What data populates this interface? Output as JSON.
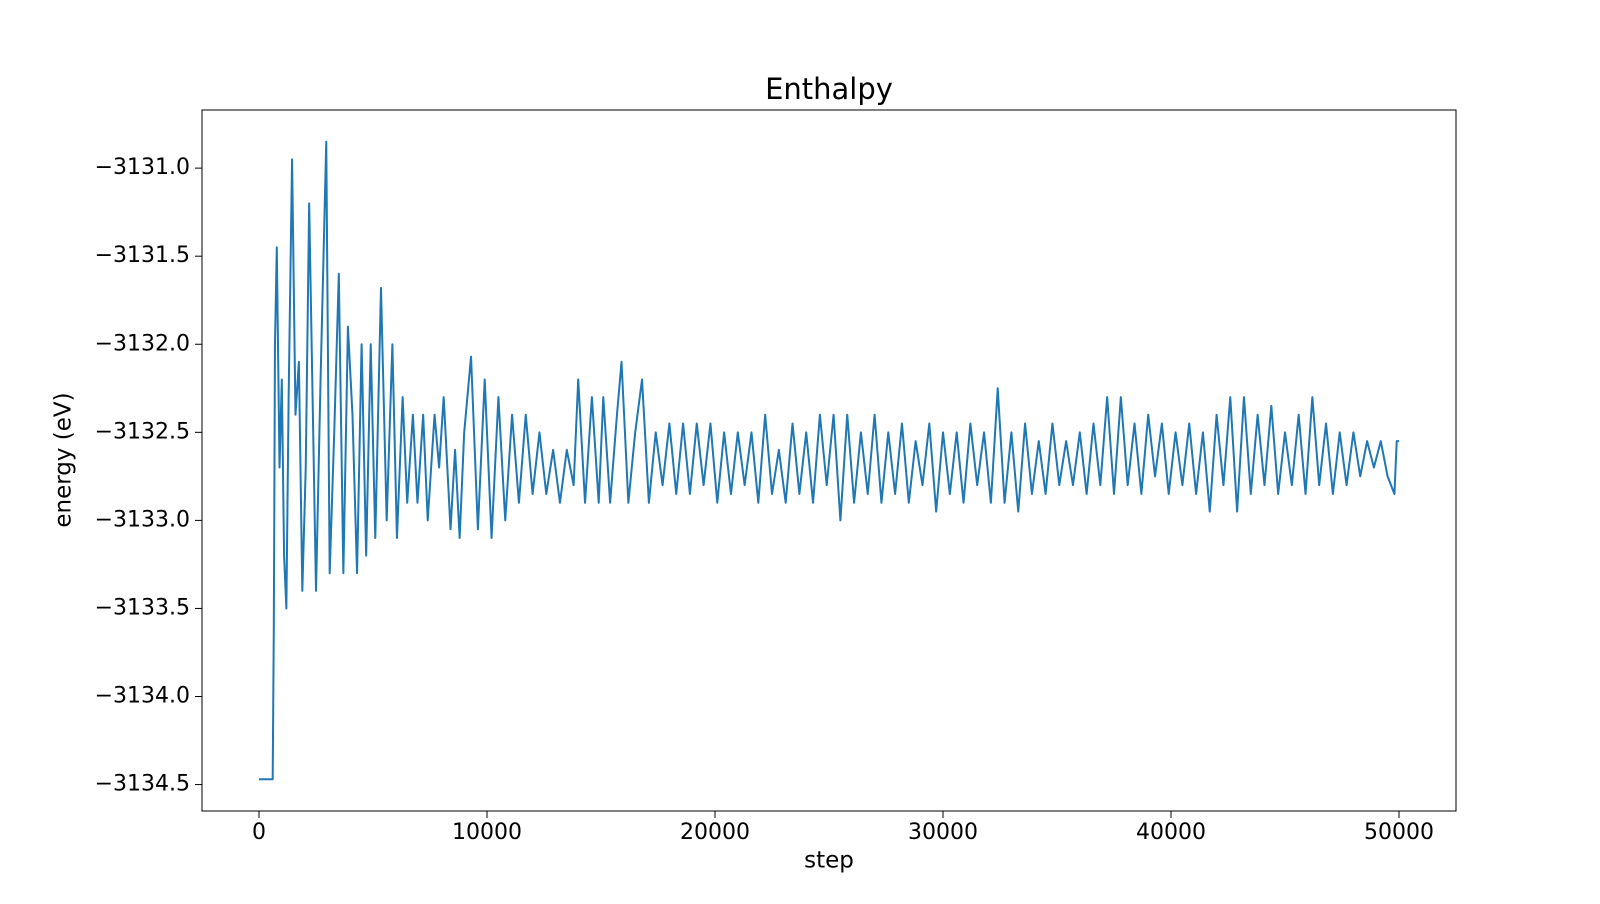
{
  "chart_data": {
    "type": "line",
    "title": "Enthalpy",
    "x_label": "step",
    "y_label": "energy (eV)",
    "xlim": [
      -2500,
      52500
    ],
    "ylim": [
      -3134.65,
      -3130.67
    ],
    "xticks": [
      0,
      10000,
      20000,
      30000,
      40000,
      50000
    ],
    "yticks": [
      {
        "value": -3131.0,
        "label": "−3131.0"
      },
      {
        "value": -3131.5,
        "label": "−3131.5"
      },
      {
        "value": -3132.0,
        "label": "−3132.0"
      },
      {
        "value": -3132.5,
        "label": "−3132.5"
      },
      {
        "value": -3133.0,
        "label": "−3133.0"
      },
      {
        "value": -3133.5,
        "label": "−3133.5"
      },
      {
        "value": -3134.0,
        "label": "−3134.0"
      },
      {
        "value": -3134.5,
        "label": "−3134.5"
      }
    ],
    "grid": false,
    "x": [
      0,
      600,
      650,
      700,
      780,
      900,
      1000,
      1100,
      1200,
      1300,
      1450,
      1600,
      1750,
      1900,
      2050,
      2200,
      2350,
      2500,
      2700,
      2950,
      3100,
      3300,
      3500,
      3700,
      3900,
      4100,
      4300,
      4500,
      4700,
      4900,
      5100,
      5350,
      5600,
      5850,
      6050,
      6300,
      6500,
      6750,
      6950,
      7200,
      7400,
      7700,
      7900,
      8100,
      8400,
      8600,
      8800,
      9000,
      9300,
      9600,
      9900,
      10200,
      10500,
      10800,
      11100,
      11400,
      11700,
      12000,
      12300,
      12600,
      12900,
      13200,
      13500,
      13800,
      14000,
      14300,
      14600,
      14900,
      15100,
      15400,
      15700,
      15900,
      16200,
      16500,
      16800,
      17100,
      17400,
      17700,
      18000,
      18300,
      18600,
      18900,
      19200,
      19500,
      19800,
      20100,
      20400,
      20700,
      21000,
      21300,
      21600,
      21900,
      22200,
      22500,
      22800,
      23100,
      23400,
      23700,
      24000,
      24300,
      24600,
      24900,
      25200,
      25500,
      25800,
      26100,
      26400,
      26700,
      27000,
      27300,
      27600,
      27900,
      28200,
      28500,
      28800,
      29100,
      29400,
      29700,
      30000,
      30300,
      30600,
      30900,
      31200,
      31500,
      31800,
      32100,
      32400,
      32700,
      33000,
      33300,
      33600,
      33900,
      34200,
      34500,
      34800,
      35100,
      35400,
      35700,
      36000,
      36300,
      36600,
      36900,
      37200,
      37500,
      37800,
      38100,
      38400,
      38700,
      39000,
      39300,
      39600,
      39900,
      40200,
      40500,
      40800,
      41100,
      41400,
      41700,
      42000,
      42300,
      42600,
      42900,
      43200,
      43500,
      43800,
      44100,
      44400,
      44700,
      45000,
      45300,
      45600,
      45900,
      46200,
      46500,
      46800,
      47100,
      47400,
      47700,
      48000,
      48300,
      48600,
      48900,
      49200,
      49500,
      49800,
      49900,
      50000
    ],
    "series": [
      {
        "name": "enthalpy",
        "color": "#1f77b4",
        "values": [
          -3134.47,
          -3134.47,
          -3133.6,
          -3132.0,
          -3131.45,
          -3132.7,
          -3132.2,
          -3133.2,
          -3133.5,
          -3132.3,
          -3130.95,
          -3132.4,
          -3132.1,
          -3133.4,
          -3132.7,
          -3131.2,
          -3132.3,
          -3133.4,
          -3132.2,
          -3130.85,
          -3133.3,
          -3132.5,
          -3131.6,
          -3133.3,
          -3131.9,
          -3132.4,
          -3133.3,
          -3132.0,
          -3133.2,
          -3132.0,
          -3133.1,
          -3131.68,
          -3133.0,
          -3132.0,
          -3133.1,
          -3132.3,
          -3132.9,
          -3132.4,
          -3132.9,
          -3132.4,
          -3133.0,
          -3132.4,
          -3132.7,
          -3132.3,
          -3133.05,
          -3132.6,
          -3133.1,
          -3132.5,
          -3132.07,
          -3133.05,
          -3132.2,
          -3133.1,
          -3132.3,
          -3133.0,
          -3132.4,
          -3132.9,
          -3132.4,
          -3132.85,
          -3132.5,
          -3132.85,
          -3132.6,
          -3132.9,
          -3132.6,
          -3132.8,
          -3132.2,
          -3132.9,
          -3132.3,
          -3132.9,
          -3132.3,
          -3132.9,
          -3132.4,
          -3132.1,
          -3132.9,
          -3132.5,
          -3132.2,
          -3132.9,
          -3132.5,
          -3132.8,
          -3132.45,
          -3132.85,
          -3132.45,
          -3132.85,
          -3132.45,
          -3132.8,
          -3132.45,
          -3132.9,
          -3132.5,
          -3132.85,
          -3132.5,
          -3132.8,
          -3132.5,
          -3132.9,
          -3132.4,
          -3132.85,
          -3132.6,
          -3132.9,
          -3132.45,
          -3132.85,
          -3132.5,
          -3132.9,
          -3132.4,
          -3132.8,
          -3132.4,
          -3133.0,
          -3132.4,
          -3132.9,
          -3132.5,
          -3132.85,
          -3132.4,
          -3132.9,
          -3132.5,
          -3132.85,
          -3132.45,
          -3132.9,
          -3132.55,
          -3132.8,
          -3132.45,
          -3132.95,
          -3132.5,
          -3132.85,
          -3132.5,
          -3132.9,
          -3132.45,
          -3132.8,
          -3132.5,
          -3132.9,
          -3132.25,
          -3132.9,
          -3132.5,
          -3132.95,
          -3132.45,
          -3132.85,
          -3132.55,
          -3132.85,
          -3132.45,
          -3132.8,
          -3132.55,
          -3132.8,
          -3132.5,
          -3132.85,
          -3132.45,
          -3132.8,
          -3132.3,
          -3132.85,
          -3132.3,
          -3132.8,
          -3132.45,
          -3132.85,
          -3132.4,
          -3132.75,
          -3132.45,
          -3132.85,
          -3132.5,
          -3132.8,
          -3132.45,
          -3132.85,
          -3132.5,
          -3132.95,
          -3132.4,
          -3132.8,
          -3132.3,
          -3132.95,
          -3132.3,
          -3132.85,
          -3132.4,
          -3132.8,
          -3132.35,
          -3132.85,
          -3132.5,
          -3132.8,
          -3132.4,
          -3132.85,
          -3132.3,
          -3132.8,
          -3132.45,
          -3132.85,
          -3132.5,
          -3132.8,
          -3132.5,
          -3132.75,
          -3132.55,
          -3132.7,
          -3132.55,
          -3132.75,
          -3132.85,
          -3132.55,
          -3132.55
        ]
      }
    ]
  }
}
